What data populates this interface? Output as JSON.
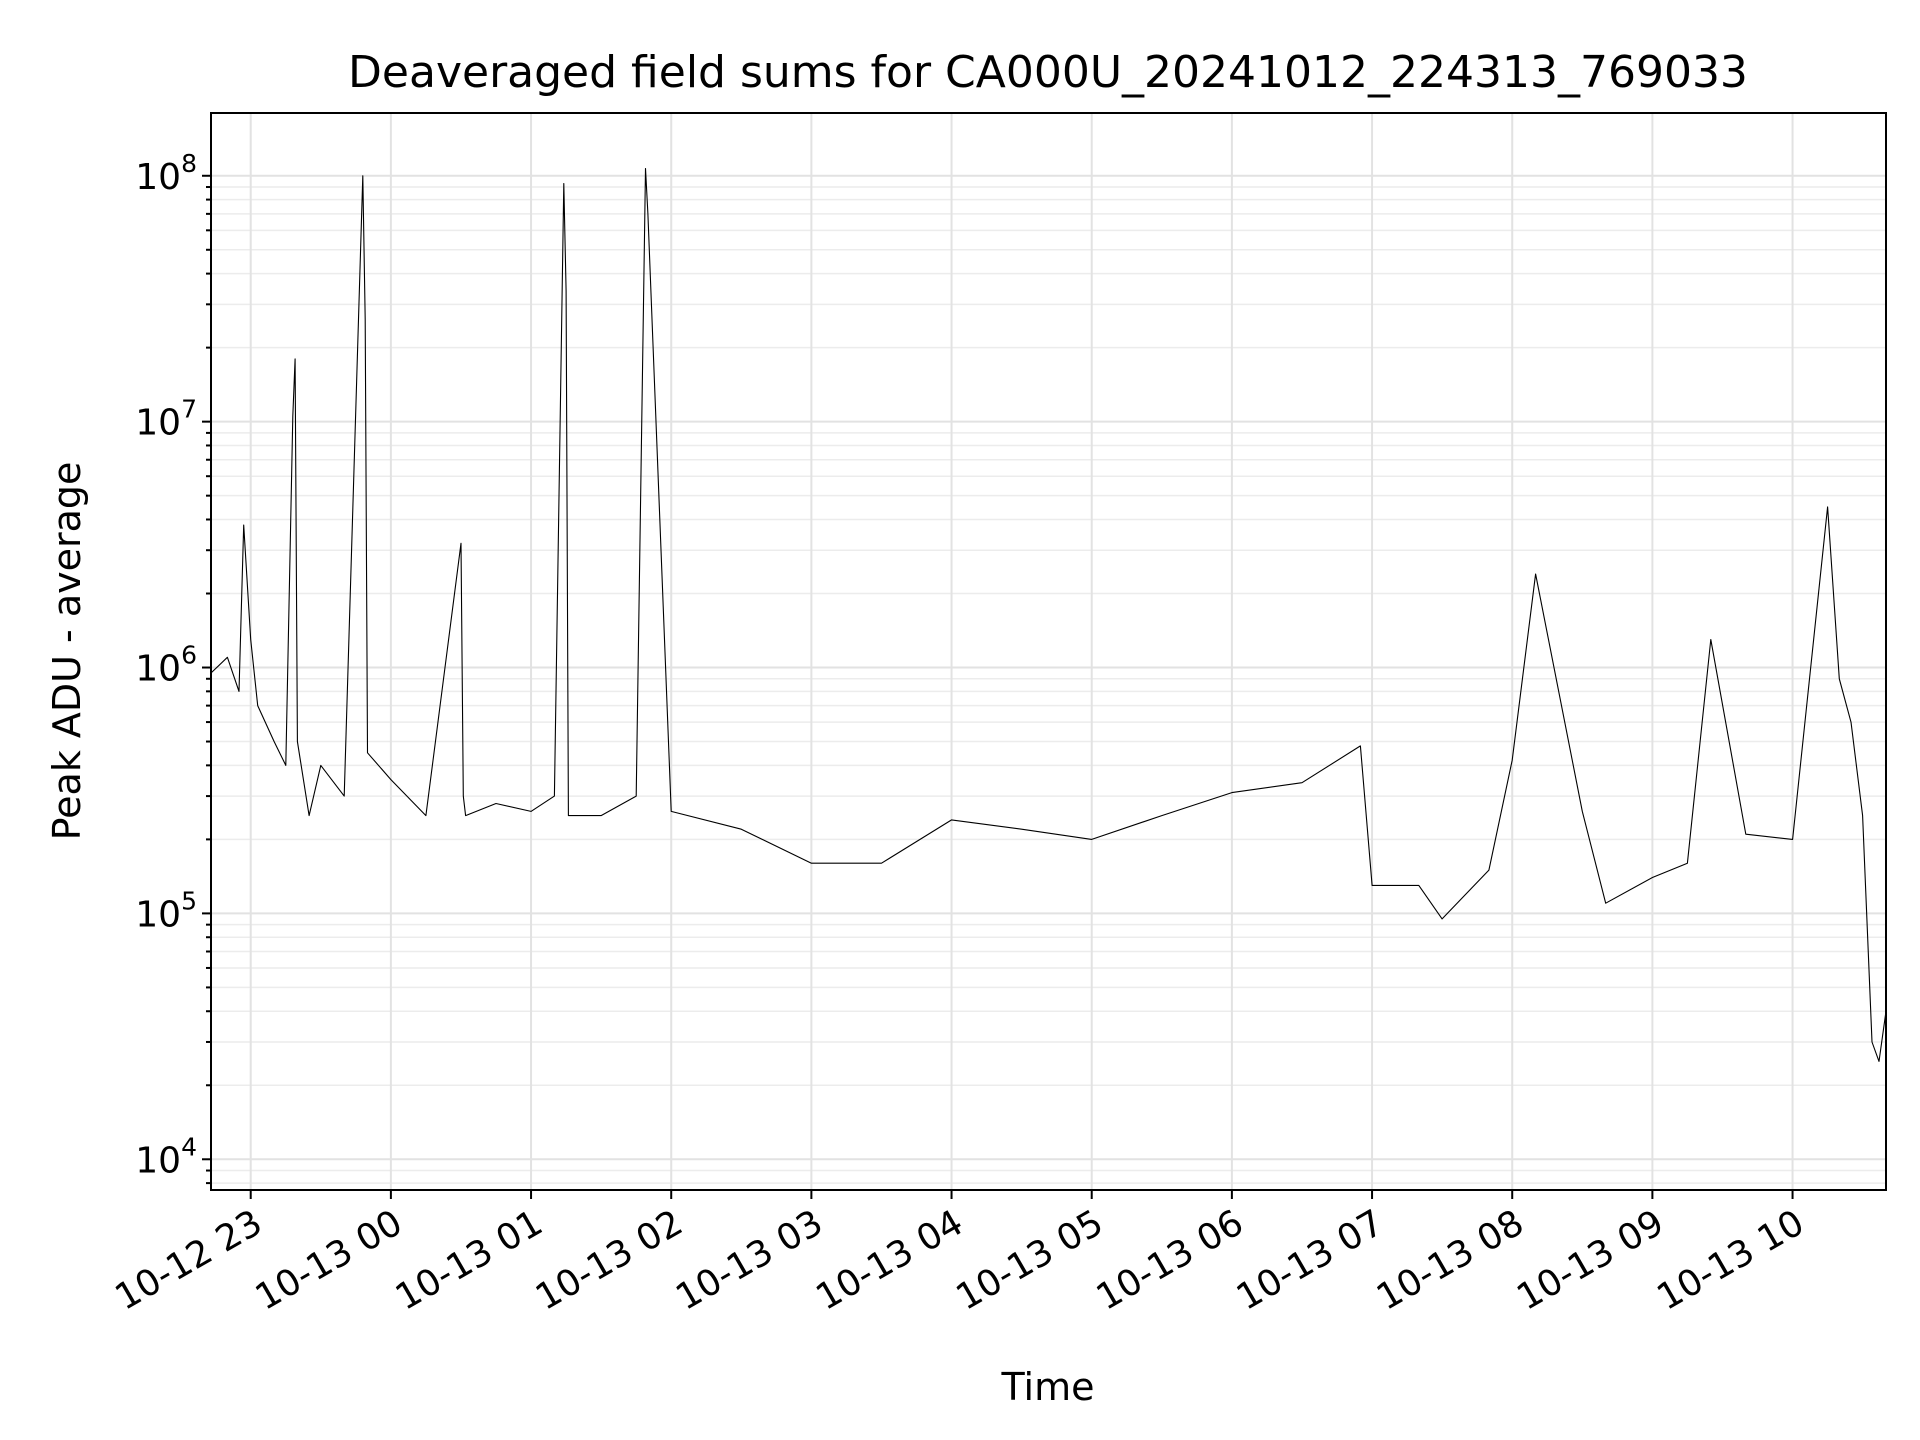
{
  "chart_data": {
    "type": "line",
    "title": "Deaveraged field sums for CA000U_20241012_224313_769033",
    "xlabel": "Time",
    "ylabel": "Peak ADU - average",
    "yscale": "log",
    "ylim": [
      7500,
      180000000
    ],
    "xlim": [
      "2024-10-12 22:43",
      "2024-10-13 10:40"
    ],
    "grid": true,
    "x_ticks": [
      {
        "label": "10-12 23",
        "time": "2024-10-12 23:00"
      },
      {
        "label": "10-13 00",
        "time": "2024-10-13 00:00"
      },
      {
        "label": "10-13 01",
        "time": "2024-10-13 01:00"
      },
      {
        "label": "10-13 02",
        "time": "2024-10-13 02:00"
      },
      {
        "label": "10-13 03",
        "time": "2024-10-13 03:00"
      },
      {
        "label": "10-13 04",
        "time": "2024-10-13 04:00"
      },
      {
        "label": "10-13 05",
        "time": "2024-10-13 05:00"
      },
      {
        "label": "10-13 06",
        "time": "2024-10-13 06:00"
      },
      {
        "label": "10-13 07",
        "time": "2024-10-13 07:00"
      },
      {
        "label": "10-13 08",
        "time": "2024-10-13 08:00"
      },
      {
        "label": "10-13 09",
        "time": "2024-10-13 09:00"
      },
      {
        "label": "10-13 10",
        "time": "2024-10-13 10:00"
      }
    ],
    "y_ticks": [
      {
        "base": "10",
        "exp": "4",
        "value": 10000
      },
      {
        "base": "10",
        "exp": "5",
        "value": 100000
      },
      {
        "base": "10",
        "exp": "6",
        "value": 1000000
      },
      {
        "base": "10",
        "exp": "7",
        "value": 10000000
      },
      {
        "base": "10",
        "exp": "8",
        "value": 100000000
      }
    ],
    "series": [
      {
        "color": "#000000",
        "x": [
          "2024-10-12 22:43",
          "2024-10-12 22:50",
          "2024-10-12 22:55",
          "2024-10-12 22:57",
          "2024-10-12 23:00",
          "2024-10-12 23:03",
          "2024-10-12 23:10",
          "2024-10-12 23:15",
          "2024-10-12 23:18",
          "2024-10-12 23:19",
          "2024-10-12 23:20",
          "2024-10-12 23:25",
          "2024-10-12 23:30",
          "2024-10-12 23:40",
          "2024-10-12 23:48",
          "2024-10-12 23:49",
          "2024-10-12 23:50",
          "2024-10-13 00:00",
          "2024-10-13 00:15",
          "2024-10-13 00:30",
          "2024-10-13 00:31",
          "2024-10-13 00:32",
          "2024-10-13 00:45",
          "2024-10-13 01:00",
          "2024-10-13 01:10",
          "2024-10-13 01:14",
          "2024-10-13 01:15",
          "2024-10-13 01:16",
          "2024-10-13 01:30",
          "2024-10-13 01:45",
          "2024-10-13 01:49",
          "2024-10-13 01:50",
          "2024-10-13 02:00",
          "2024-10-13 02:30",
          "2024-10-13 03:00",
          "2024-10-13 03:30",
          "2024-10-13 04:00",
          "2024-10-13 04:30",
          "2024-10-13 05:00",
          "2024-10-13 05:30",
          "2024-10-13 06:00",
          "2024-10-13 06:30",
          "2024-10-13 06:55",
          "2024-10-13 07:00",
          "2024-10-13 07:20",
          "2024-10-13 07:30",
          "2024-10-13 07:50",
          "2024-10-13 08:00",
          "2024-10-13 08:10",
          "2024-10-13 08:30",
          "2024-10-13 08:40",
          "2024-10-13 09:00",
          "2024-10-13 09:15",
          "2024-10-13 09:25",
          "2024-10-13 09:40",
          "2024-10-13 10:00",
          "2024-10-13 10:15",
          "2024-10-13 10:20",
          "2024-10-13 10:25",
          "2024-10-13 10:30",
          "2024-10-13 10:34",
          "2024-10-13 10:37",
          "2024-10-13 10:40"
        ],
        "y": [
          950000,
          1100000,
          800000,
          3800000,
          1300000,
          700000,
          500000,
          400000,
          10500000,
          18000000,
          500000,
          250000,
          400000,
          300000,
          100000000,
          26000000,
          450000,
          350000,
          250000,
          3200000,
          300000,
          250000,
          280000,
          260000,
          300000,
          93000000,
          34000000,
          250000,
          250000,
          300000,
          107000000,
          70000000,
          260000,
          220000,
          160000,
          160000,
          240000,
          220000,
          200000,
          250000,
          310000,
          340000,
          480000,
          130000,
          130000,
          95000,
          150000,
          420000,
          2400000,
          260000,
          110000,
          140000,
          160000,
          1300000,
          210000,
          200000,
          4500000,
          900000,
          600000,
          250000,
          30000,
          25000,
          40000
        ]
      }
    ]
  }
}
